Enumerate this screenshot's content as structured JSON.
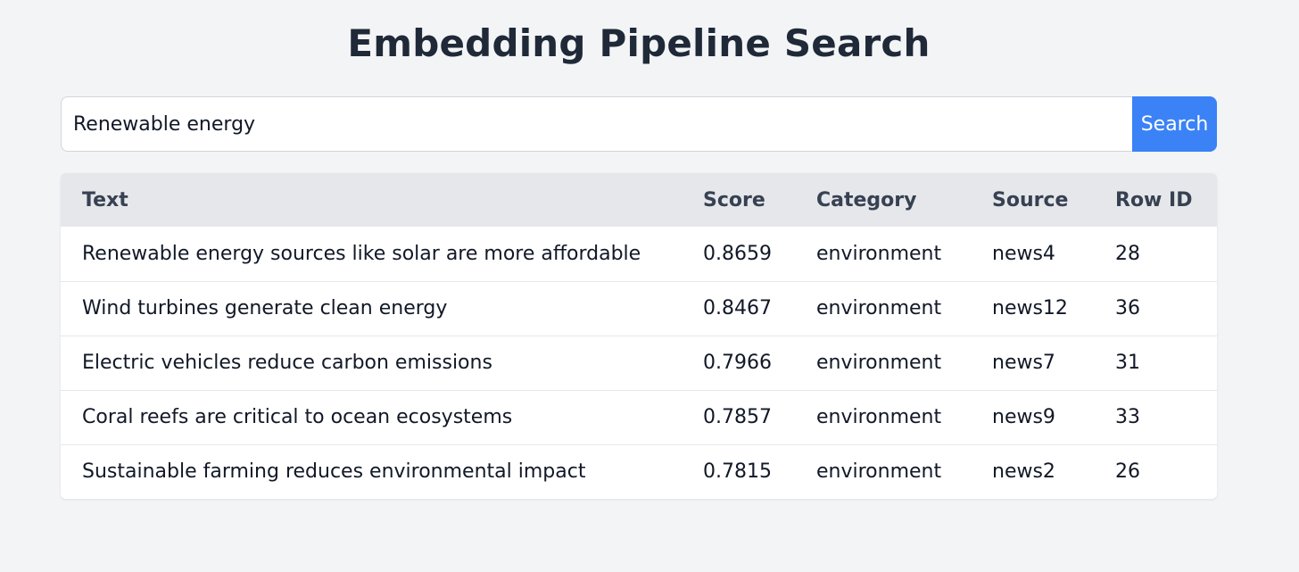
{
  "title": "Embedding Pipeline Search",
  "search": {
    "value": "Renewable energy",
    "button_label": "Search"
  },
  "table": {
    "headers": [
      "Text",
      "Score",
      "Category",
      "Source",
      "Row ID"
    ],
    "rows": [
      [
        "Renewable energy sources like solar are more affordable",
        "0.8659",
        "environment",
        "news4",
        "28"
      ],
      [
        "Wind turbines generate clean energy",
        "0.8467",
        "environment",
        "news12",
        "36"
      ],
      [
        "Electric vehicles reduce carbon emissions",
        "0.7966",
        "environment",
        "news7",
        "31"
      ],
      [
        "Coral reefs are critical to ocean ecosystems",
        "0.7857",
        "environment",
        "news9",
        "33"
      ],
      [
        "Sustainable farming reduces environmental impact",
        "0.7815",
        "environment",
        "news2",
        "26"
      ]
    ]
  },
  "colors": {
    "background": "#f3f4f6",
    "accent": "#3b82f6",
    "header_bg": "#e5e7eb",
    "title": "#1f2937"
  }
}
